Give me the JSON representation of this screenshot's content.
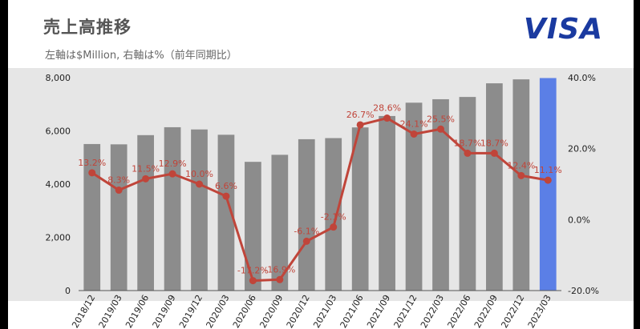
{
  "header": {
    "title": "売上高推移",
    "subtitle": "左軸は$Million, 右軸は%（前年同期比）",
    "logo": "VISA"
  },
  "colors": {
    "bar": "#8c8c8c",
    "bar_highlight": "#5b7fe6",
    "line": "#c0453a",
    "plot_bg": "#e6e6e6"
  },
  "chart_data": {
    "type": "bar",
    "categories": [
      "2018/12",
      "2019/03",
      "2019/06",
      "2019/09",
      "2019/12",
      "2020/03",
      "2020/06",
      "2020/09",
      "2020/12",
      "2021/03",
      "2021/06",
      "2021/09",
      "2021/12",
      "2022/03",
      "2022/06",
      "2022/09",
      "2022/12",
      "2023/03"
    ],
    "series": [
      {
        "type": "bar",
        "axis": "left",
        "values": [
          5506,
          5494,
          5840,
          6137,
          6054,
          5854,
          4837,
          5101,
          5687,
          5729,
          6130,
          6559,
          7059,
          7189,
          7275,
          7787,
          7936,
          7985
        ]
      },
      {
        "type": "line",
        "axis": "right",
        "values": [
          13.2,
          8.3,
          11.5,
          12.9,
          10.0,
          6.6,
          -17.2,
          -16.9,
          -6.1,
          -2.1,
          26.7,
          28.6,
          24.1,
          25.5,
          18.7,
          18.7,
          12.4,
          11.1
        ],
        "labels": [
          "13.2%",
          "8.3%",
          "11.5%",
          "12.9%",
          "10.0%",
          "6.6%",
          "-17.2%",
          "-16.9%",
          "-6.1%",
          "-2.1%",
          "26.7%",
          "28.6%",
          "24.1%",
          "25.5%",
          "18.7%",
          "18.7%",
          "12.4%",
          "11.1%"
        ]
      }
    ],
    "y_left": {
      "ylim": [
        0,
        8000
      ],
      "ticks": [
        "0",
        "2,000",
        "4,000",
        "6,000",
        "8,000"
      ],
      "tick_values": [
        0,
        2000,
        4000,
        6000,
        8000
      ]
    },
    "y_right": {
      "ylim": [
        -20,
        40
      ],
      "ticks": [
        "-20.0%",
        "0.0%",
        "20.0%",
        "40.0%"
      ],
      "tick_values": [
        -20,
        0,
        20,
        40
      ]
    },
    "highlight_index": 17,
    "grid": false
  }
}
